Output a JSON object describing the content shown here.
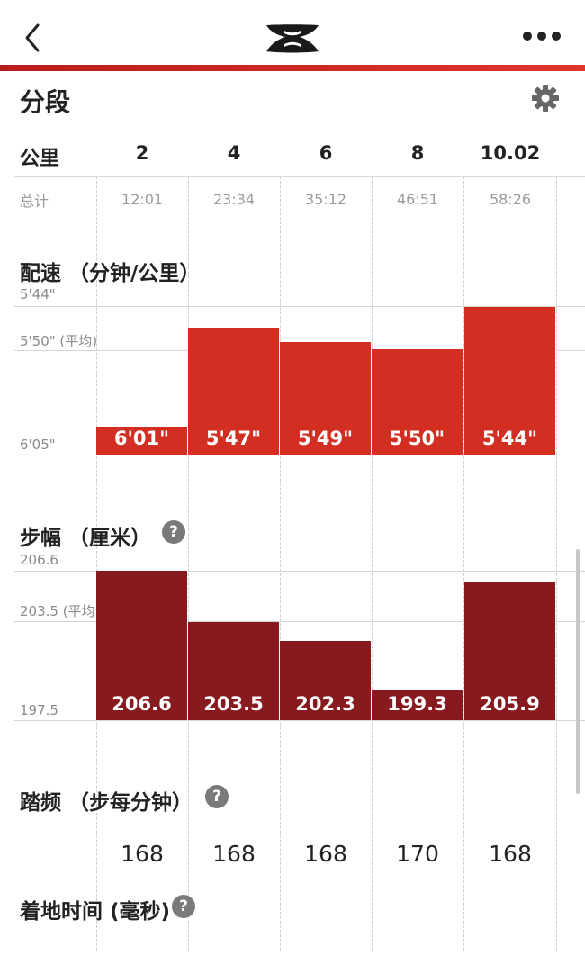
{
  "header": {
    "back_icon": "chevron-left-icon",
    "logo": "under-armour-logo",
    "more_icon": "more-horizontal-icon"
  },
  "splits": {
    "title": "分段",
    "settings_icon": "gear-icon",
    "km_label": "公里",
    "km": [
      "2",
      "4",
      "6",
      "8",
      "10.02"
    ],
    "total_label": "总计",
    "totals": [
      "12:01",
      "23:34",
      "35:12",
      "46:51",
      "58:26"
    ]
  },
  "pace": {
    "title": "配速 （分钟/公里）",
    "axis_top": "5'44\"",
    "axis_avg": "5'50\" (平均)",
    "axis_bottom": "6'05\"",
    "bar_color": "#d22f22",
    "labels": [
      "6'01\"",
      "5'47\"",
      "5'49\"",
      "5'50\"",
      "5'44\""
    ],
    "seconds": [
      361,
      347,
      349,
      350,
      344
    ],
    "range_seconds": [
      344,
      365
    ]
  },
  "stride": {
    "title": "步幅 （厘米）",
    "help_icon": "?",
    "axis_top": "206.6",
    "axis_avg": "203.5 (平均)",
    "axis_bottom": "197.5",
    "bar_color": "#871a1e",
    "labels": [
      "206.6",
      "203.5",
      "202.3",
      "199.3",
      "205.9"
    ],
    "values": [
      206.6,
      203.5,
      202.3,
      199.3,
      205.9
    ],
    "range": [
      197.5,
      206.6
    ]
  },
  "cadence": {
    "title": "踏频 （步每分钟）",
    "help_icon": "?",
    "values": [
      "168",
      "168",
      "168",
      "170",
      "168"
    ]
  },
  "ground_contact": {
    "title": "着地时间 (毫秒)",
    "help_icon": "?"
  }
}
